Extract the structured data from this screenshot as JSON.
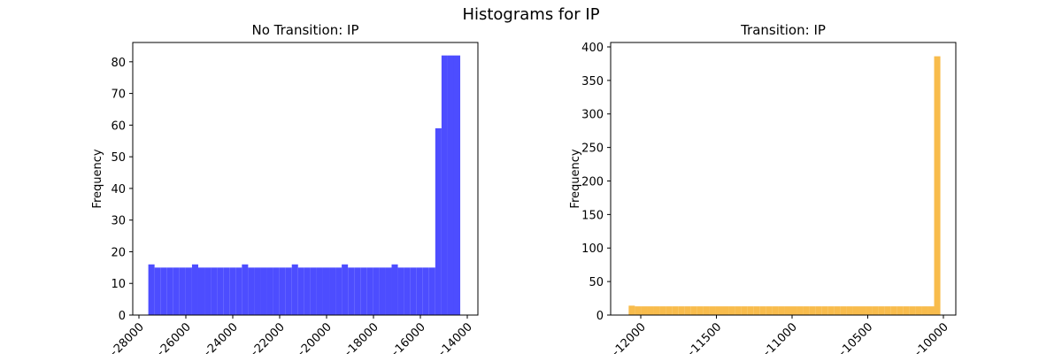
{
  "title": "Histograms for IP",
  "chart_data": [
    {
      "type": "histogram",
      "title": "No Transition: IP",
      "y_label": "Frequency",
      "color": "#4d4dff",
      "bins": [
        -27600,
        -27334,
        -27068,
        -26802,
        -26536,
        -26270,
        -26004,
        -25738,
        -25472,
        -25206,
        -24940,
        -24674,
        -24408,
        -24142,
        -23876,
        -23610,
        -23344,
        -23078,
        -22812,
        -22546,
        -22280,
        -22014,
        -21748,
        -21482,
        -21216,
        -20950,
        -20684,
        -20418,
        -20152,
        -19886,
        -19620,
        -19354,
        -19088,
        -18822,
        -18556,
        -18290,
        -18024,
        -17758,
        -17492,
        -17226,
        -16960,
        -16694,
        -16428,
        -16162,
        -15896,
        -15630,
        -15364,
        -15098,
        -14832,
        -14566,
        -14300
      ],
      "values": [
        16,
        15,
        15,
        15,
        15,
        15,
        15,
        16,
        15,
        15,
        15,
        15,
        15,
        15,
        15,
        16,
        15,
        15,
        15,
        15,
        15,
        15,
        15,
        16,
        15,
        15,
        15,
        15,
        15,
        15,
        15,
        16,
        15,
        15,
        15,
        15,
        15,
        15,
        15,
        16,
        15,
        15,
        15,
        15,
        15,
        15,
        59,
        82,
        82,
        82
      ],
      "xlim": [
        -28264,
        -13547
      ],
      "xticks": [
        {
          "value": -28000,
          "label": "−28000"
        },
        {
          "value": -26000,
          "label": "−26000"
        },
        {
          "value": -24000,
          "label": "−24000"
        },
        {
          "value": -22000,
          "label": "−22000"
        },
        {
          "value": -20000,
          "label": "−20000"
        },
        {
          "value": -18000,
          "label": "−18000"
        },
        {
          "value": -16000,
          "label": "−16000"
        },
        {
          "value": -14000,
          "label": "−14000"
        }
      ],
      "ylim": [
        0,
        86.1
      ],
      "yticks": [
        0,
        10,
        20,
        30,
        40,
        50,
        60,
        70,
        80
      ]
    },
    {
      "type": "histogram",
      "title": "Transition: IP",
      "y_label": "Frequency",
      "color": "#f8bc4c",
      "bins": [
        -12080,
        -12038.8,
        -11997.6,
        -11956.4,
        -11915.2,
        -11874,
        -11832.8,
        -11791.6,
        -11750.4,
        -11709.2,
        -11668,
        -11626.8,
        -11585.6,
        -11544.4,
        -11503.2,
        -11462,
        -11420.8,
        -11379.6,
        -11338.4,
        -11297.2,
        -11256,
        -11214.8,
        -11173.6,
        -11132.4,
        -11091.2,
        -11050,
        -11008.8,
        -10967.6,
        -10926.4,
        -10885.2,
        -10844,
        -10802.8,
        -10761.6,
        -10720.4,
        -10679.2,
        -10638,
        -10596.8,
        -10555.6,
        -10514.4,
        -10473.2,
        -10432,
        -10390.8,
        -10349.6,
        -10308.4,
        -10267.2,
        -10226,
        -10184.8,
        -10143.6,
        -10102.4,
        -10061.2,
        -10020
      ],
      "values": [
        14,
        13,
        13,
        13,
        13,
        13,
        13,
        13,
        13,
        13,
        13,
        13,
        13,
        13,
        13,
        13,
        13,
        13,
        13,
        13,
        13,
        13,
        13,
        13,
        13,
        13,
        13,
        13,
        13,
        13,
        13,
        13,
        13,
        13,
        13,
        13,
        13,
        13,
        13,
        13,
        13,
        13,
        13,
        13,
        13,
        13,
        13,
        13,
        13,
        386
      ],
      "xlim": [
        -12199,
        -9918
      ],
      "xticks": [
        {
          "value": -12000,
          "label": "−12000"
        },
        {
          "value": -11500,
          "label": "−11500"
        },
        {
          "value": -11000,
          "label": "−11000"
        },
        {
          "value": -10500,
          "label": "−10500"
        },
        {
          "value": -10000,
          "label": "−10000"
        }
      ],
      "ylim": [
        0,
        406.6
      ],
      "yticks": [
        0,
        50,
        100,
        150,
        200,
        250,
        300,
        350,
        400
      ]
    }
  ]
}
